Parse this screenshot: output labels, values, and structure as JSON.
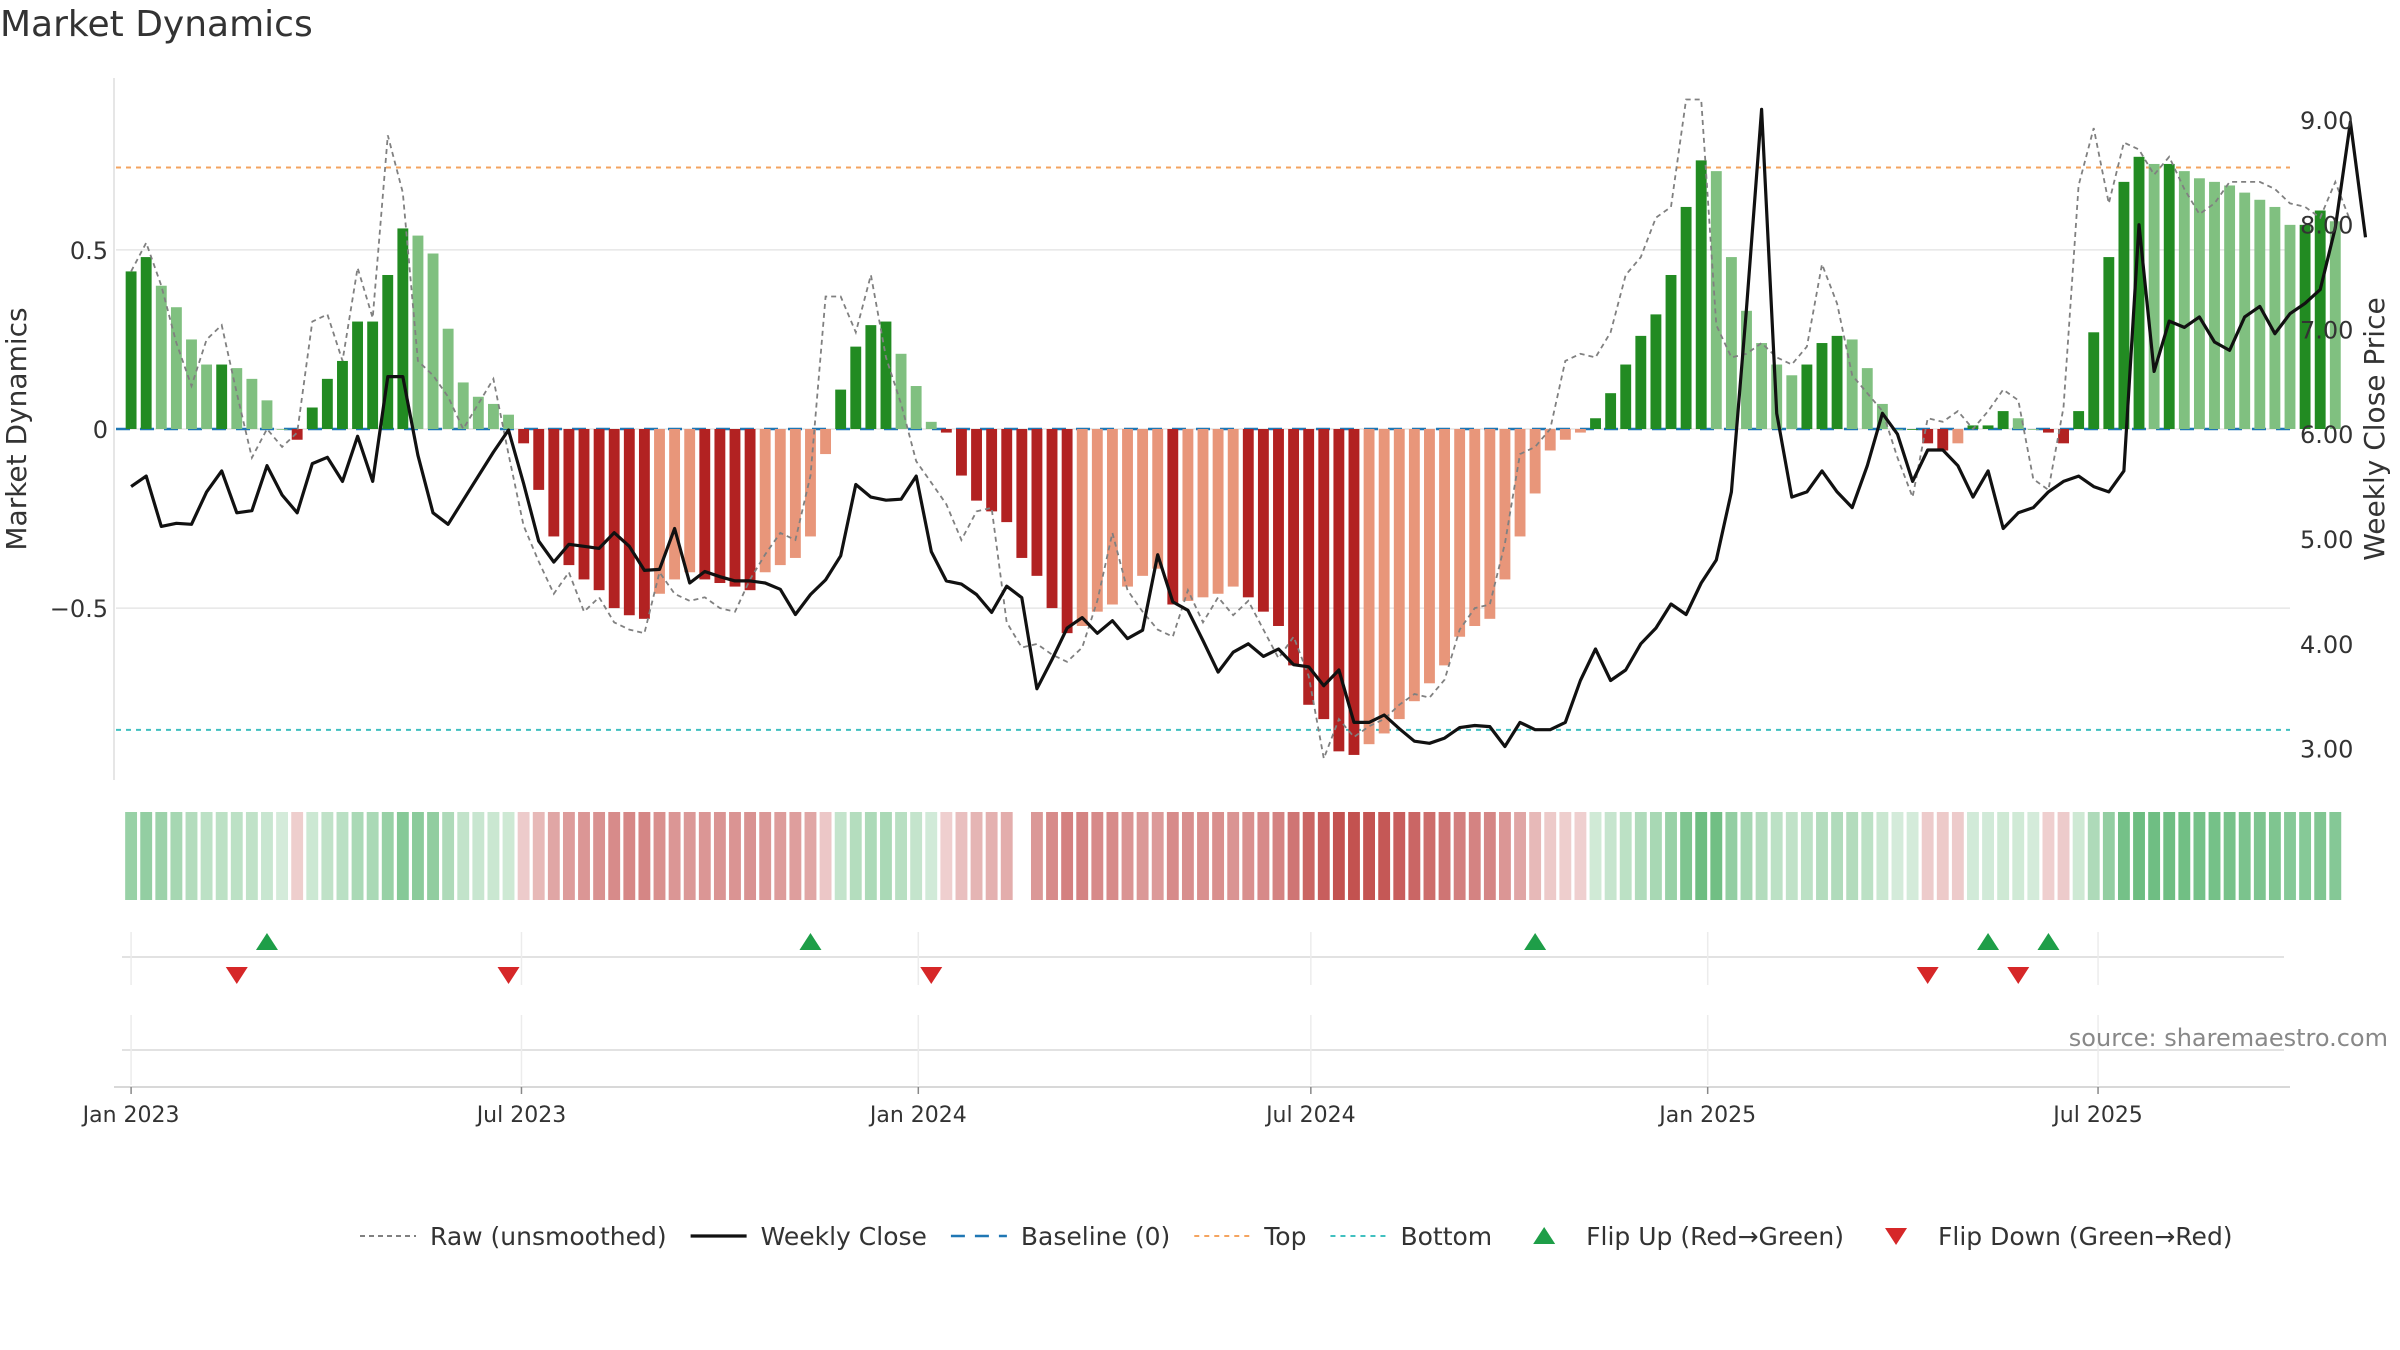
{
  "title": "Market Dynamics",
  "source_note": "source: sharemaestro.com",
  "colors": {
    "strong_green": "#228B22",
    "weak_green": "#80C080",
    "strong_red": "#B22222",
    "weak_red": "#E8967A",
    "raw_line": "#808080",
    "close_line": "#111111",
    "baseline": "#1F77B4",
    "top": "#F4A460",
    "bottom": "#40C0C0",
    "flip_up": "#1E9E48",
    "flip_down": "#D62728"
  },
  "chart_data": {
    "type": "bar",
    "x_start": "2023-01-01",
    "x_step_days": 7,
    "xlim": [
      "2022-12-25",
      "2025-09-28"
    ],
    "x_ticks": [
      {
        "label": "Jan 2023",
        "date": "2023-01-01"
      },
      {
        "label": "Jul 2023",
        "date": "2023-07-01"
      },
      {
        "label": "Jan 2024",
        "date": "2024-01-01"
      },
      {
        "label": "Jul 2024",
        "date": "2024-07-01"
      },
      {
        "label": "Jan 2025",
        "date": "2025-01-01"
      },
      {
        "label": "Jul 2025",
        "date": "2025-07-01"
      }
    ],
    "ylabel": "Market Dynamics",
    "y2label": "Weekly Close Price",
    "ylim": [
      -0.98,
      0.98
    ],
    "y2lim": [
      2.7,
      9.4
    ],
    "y_ticks": [
      {
        "label": "0.5",
        "value": 0.5
      },
      {
        "label": "0",
        "value": 0
      },
      {
        "label": "−0.5",
        "value": -0.5
      }
    ],
    "y2_ticks": [
      {
        "label": "9.00",
        "value": 9
      },
      {
        "label": "8.00",
        "value": 8
      },
      {
        "label": "7.00",
        "value": 7
      },
      {
        "label": "6.00",
        "value": 6
      },
      {
        "label": "5.00",
        "value": 5
      },
      {
        "label": "4.00",
        "value": 4
      },
      {
        "label": "3.00",
        "value": 3
      }
    ],
    "top_level": 0.73,
    "bottom_level": -0.84,
    "baseline_level": 0,
    "grid": true,
    "legend_position": "bottom",
    "legend": [
      {
        "label": "Raw (unsmoothed)",
        "kind": "raw"
      },
      {
        "label": "Weekly Close",
        "kind": "close"
      },
      {
        "label": "Baseline (0)",
        "kind": "baseline"
      },
      {
        "label": "Top",
        "kind": "top"
      },
      {
        "label": "Bottom",
        "kind": "bottom"
      },
      {
        "label": "Flip Up (Red→Green)",
        "kind": "up"
      },
      {
        "label": "Flip Down (Green→Red)",
        "kind": "down"
      }
    ],
    "smoothed": [
      0.44,
      0.48,
      0.4,
      0.34,
      0.25,
      0.18,
      0.18,
      0.17,
      0.14,
      0.08,
      0.0,
      -0.03,
      0.06,
      0.14,
      0.19,
      0.3,
      0.3,
      0.43,
      0.56,
      0.54,
      0.49,
      0.28,
      0.13,
      0.09,
      0.07,
      0.04,
      -0.04,
      -0.17,
      -0.3,
      -0.38,
      -0.42,
      -0.45,
      -0.5,
      -0.52,
      -0.53,
      -0.46,
      -0.42,
      -0.4,
      -0.42,
      -0.43,
      -0.44,
      -0.45,
      -0.4,
      -0.38,
      -0.36,
      -0.3,
      -0.07,
      0.11,
      0.23,
      0.29,
      0.3,
      0.21,
      0.12,
      0.02,
      -0.01,
      -0.13,
      -0.2,
      -0.23,
      -0.26,
      -0.36,
      -0.41,
      -0.5,
      -0.57,
      -0.55,
      -0.51,
      -0.49,
      -0.44,
      -0.41,
      -0.39,
      -0.49,
      -0.48,
      -0.47,
      -0.46,
      -0.44,
      -0.47,
      -0.51,
      -0.55,
      -0.66,
      -0.77,
      -0.81,
      -0.9,
      -0.91,
      -0.88,
      -0.85,
      -0.81,
      -0.76,
      -0.71,
      -0.66,
      -0.58,
      -0.55,
      -0.53,
      -0.42,
      -0.3,
      -0.18,
      -0.06,
      -0.03,
      -0.01,
      0.03,
      0.1,
      0.18,
      0.26,
      0.32,
      0.43,
      0.62,
      0.75,
      0.72,
      0.48,
      0.33,
      0.24,
      0.18,
      0.15,
      0.18,
      0.24,
      0.26,
      0.25,
      0.17,
      0.07,
      0.0,
      0.0,
      -0.04,
      -0.06,
      -0.04,
      0.01,
      0.01,
      0.05,
      0.03,
      0.0,
      -0.01,
      -0.04,
      0.05,
      0.27,
      0.48,
      0.69,
      0.76,
      0.74,
      0.74,
      0.72,
      0.7,
      0.69,
      0.68,
      0.66,
      0.64,
      0.62,
      0.57,
      0.57,
      0.61,
      0.58
    ],
    "raw": [
      0.44,
      0.52,
      0.4,
      0.24,
      0.12,
      0.25,
      0.29,
      0.1,
      -0.08,
      0.0,
      -0.05,
      -0.01,
      0.3,
      0.32,
      0.19,
      0.45,
      0.31,
      0.82,
      0.66,
      0.19,
      0.15,
      0.09,
      0.0,
      0.07,
      0.14,
      -0.07,
      -0.27,
      -0.37,
      -0.46,
      -0.4,
      -0.51,
      -0.47,
      -0.54,
      -0.56,
      -0.57,
      -0.4,
      -0.46,
      -0.48,
      -0.47,
      -0.5,
      -0.51,
      -0.42,
      -0.35,
      -0.29,
      -0.31,
      -0.13,
      0.37,
      0.37,
      0.27,
      0.43,
      0.2,
      0.07,
      -0.09,
      -0.15,
      -0.21,
      -0.31,
      -0.23,
      -0.22,
      -0.54,
      -0.61,
      -0.6,
      -0.63,
      -0.65,
      -0.61,
      -0.48,
      -0.29,
      -0.45,
      -0.51,
      -0.56,
      -0.58,
      -0.45,
      -0.54,
      -0.47,
      -0.52,
      -0.48,
      -0.56,
      -0.64,
      -0.58,
      -0.69,
      -0.92,
      -0.81,
      -0.86,
      -0.83,
      -0.81,
      -0.77,
      -0.74,
      -0.75,
      -0.7,
      -0.56,
      -0.5,
      -0.49,
      -0.32,
      -0.07,
      -0.05,
      0.0,
      0.19,
      0.21,
      0.2,
      0.27,
      0.43,
      0.48,
      0.59,
      0.62,
      0.92,
      0.92,
      0.29,
      0.2,
      0.21,
      0.24,
      0.2,
      0.18,
      0.23,
      0.46,
      0.35,
      0.15,
      0.1,
      0.05,
      -0.08,
      -0.19,
      0.03,
      0.02,
      0.05,
      0.0,
      0.05,
      0.11,
      0.08,
      -0.14,
      -0.17,
      0.06,
      0.68,
      0.84,
      0.63,
      0.8,
      0.78,
      0.71,
      0.76,
      0.67,
      0.6,
      0.63,
      0.69,
      0.69,
      0.69,
      0.67,
      0.63,
      0.62,
      0.59,
      0.69,
      0.58
    ],
    "close": [
      5.5,
      5.6,
      5.12,
      5.15,
      5.14,
      5.45,
      5.65,
      5.25,
      5.27,
      5.7,
      5.42,
      5.25,
      5.72,
      5.78,
      5.55,
      5.98,
      5.55,
      6.55,
      6.55,
      5.8,
      5.25,
      5.14,
      5.37,
      5.6,
      5.83,
      6.04,
      5.53,
      4.98,
      4.78,
      4.95,
      4.93,
      4.91,
      5.06,
      4.93,
      4.7,
      4.71,
      5.1,
      4.58,
      4.69,
      4.64,
      4.6,
      4.6,
      4.58,
      4.52,
      4.28,
      4.47,
      4.61,
      4.84,
      5.52,
      5.4,
      5.37,
      5.38,
      5.6,
      4.88,
      4.6,
      4.57,
      4.47,
      4.3,
      4.55,
      4.44,
      3.57,
      3.85,
      4.15,
      4.25,
      4.1,
      4.22,
      4.05,
      4.13,
      4.85,
      4.4,
      4.32,
      4.03,
      3.73,
      3.92,
      4.0,
      3.88,
      3.95,
      3.8,
      3.78,
      3.6,
      3.75,
      3.25,
      3.25,
      3.32,
      3.19,
      3.07,
      3.05,
      3.1,
      3.2,
      3.22,
      3.21,
      3.02,
      3.25,
      3.18,
      3.18,
      3.25,
      3.65,
      3.95,
      3.65,
      3.75,
      4.0,
      4.15,
      4.38,
      4.28,
      4.58,
      4.8,
      5.45,
      7.2,
      9.1,
      6.2,
      5.4,
      5.45,
      5.65,
      5.45,
      5.3,
      5.7,
      6.2,
      6.0,
      5.55,
      5.85,
      5.85,
      5.7,
      5.4,
      5.65,
      5.1,
      5.25,
      5.3,
      5.45,
      5.55,
      5.6,
      5.5,
      5.45,
      5.65,
      8.0,
      6.6,
      7.08,
      7.02,
      7.12,
      6.88,
      6.8,
      7.12,
      7.22,
      6.96,
      7.15,
      7.25,
      7.38,
      7.97,
      8.98,
      7.88
    ],
    "flips_up": [
      "2023-03-05",
      "2023-11-12",
      "2024-10-13",
      "2025-05-11",
      "2025-06-08"
    ],
    "flips_down": [
      "2023-02-19",
      "2023-06-25",
      "2024-01-07",
      "2025-04-13",
      "2025-05-25"
    ],
    "heat_gap_index": 59
  }
}
